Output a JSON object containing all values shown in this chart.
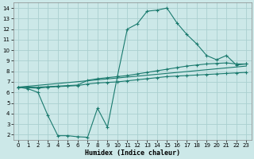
{
  "xlabel": "Humidex (Indice chaleur)",
  "xlim": [
    -0.5,
    23.5
  ],
  "ylim": [
    1.5,
    14.5
  ],
  "xticks": [
    0,
    1,
    2,
    3,
    4,
    5,
    6,
    7,
    8,
    9,
    10,
    11,
    12,
    13,
    14,
    15,
    16,
    17,
    18,
    19,
    20,
    21,
    22,
    23
  ],
  "yticks": [
    2,
    3,
    4,
    5,
    6,
    7,
    8,
    9,
    10,
    11,
    12,
    13,
    14
  ],
  "background_color": "#cce8e8",
  "grid_color": "#aad0d0",
  "line_color": "#1a7a6e",
  "series1_x": [
    0,
    1,
    2,
    3,
    4,
    5,
    6,
    7,
    8,
    9,
    10,
    11,
    12,
    13,
    14,
    15,
    16,
    17,
    18,
    19,
    20,
    21,
    22,
    23
  ],
  "series1_y": [
    6.5,
    6.35,
    6.0,
    3.8,
    1.9,
    1.9,
    1.8,
    1.75,
    4.5,
    2.7,
    7.5,
    12.0,
    12.5,
    13.7,
    13.8,
    14.0,
    12.6,
    11.5,
    10.6,
    9.5,
    9.1,
    9.5,
    8.6,
    8.7
  ],
  "series2_x": [
    0,
    1,
    2,
    3,
    4,
    5,
    6,
    7,
    8,
    9,
    10,
    11,
    12,
    13,
    14,
    15,
    16,
    17,
    18,
    19,
    20,
    21,
    22,
    23
  ],
  "series2_y": [
    6.5,
    6.5,
    6.5,
    6.55,
    6.6,
    6.65,
    6.7,
    7.15,
    7.3,
    7.4,
    7.5,
    7.6,
    7.75,
    7.9,
    8.05,
    8.2,
    8.35,
    8.5,
    8.6,
    8.7,
    8.75,
    8.8,
    8.7,
    8.7
  ],
  "series3_x": [
    0,
    23
  ],
  "series3_y": [
    6.5,
    8.5
  ],
  "series4_x": [
    0,
    1,
    2,
    3,
    4,
    5,
    6,
    7,
    8,
    9,
    10,
    11,
    12,
    13,
    14,
    15,
    16,
    17,
    18,
    19,
    20,
    21,
    22,
    23
  ],
  "series4_y": [
    6.5,
    6.45,
    6.4,
    6.5,
    6.55,
    6.6,
    6.65,
    6.8,
    6.9,
    6.95,
    7.0,
    7.1,
    7.2,
    7.3,
    7.4,
    7.5,
    7.55,
    7.6,
    7.65,
    7.7,
    7.75,
    7.8,
    7.85,
    7.9
  ]
}
